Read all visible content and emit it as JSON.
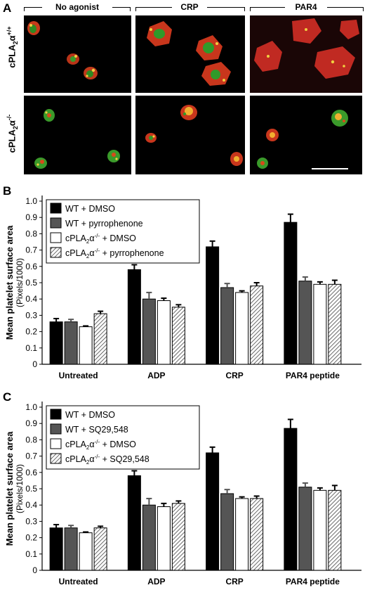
{
  "panel_a": {
    "letter": "A",
    "columns": [
      "No agonist",
      "CRP",
      "PAR4"
    ],
    "rows": [
      {
        "label": "cPLA",
        "sub": "2",
        "greek": "α",
        "sup": "+/+"
      },
      {
        "label": "cPLA",
        "sub": "2",
        "greek": "α",
        "sup": "-/-"
      }
    ]
  },
  "chart_data": [
    {
      "type": "bar",
      "panel": "B",
      "categories": [
        "Untreated",
        "ADP",
        "CRP",
        "PAR4 peptide"
      ],
      "ylabel": "Mean platelet surface area",
      "ylabel2": "(Pixels/1000)",
      "ylim": [
        0,
        1.0
      ],
      "yticks": [
        "0",
        "0.1",
        "0.2",
        "0.3",
        "0.4",
        "0.5",
        "0.6",
        "0.7",
        "0.8",
        "0.9",
        "1.0"
      ],
      "legend": "top-left",
      "series": [
        {
          "name": "WT + DMSO",
          "values": [
            0.26,
            0.58,
            0.72,
            0.87
          ],
          "errors": [
            0.02,
            0.03,
            0.035,
            0.05
          ],
          "color": "#000000",
          "fill": "solid"
        },
        {
          "name": "WT + pyrrophenone",
          "values": [
            0.26,
            0.4,
            0.47,
            0.51
          ],
          "errors": [
            0.015,
            0.04,
            0.025,
            0.025
          ],
          "color": "#555555",
          "fill": "solid"
        },
        {
          "name": "cPLA2α-/- + DMSO",
          "values": [
            0.23,
            0.39,
            0.44,
            0.49
          ],
          "errors": [
            0.005,
            0.015,
            0.01,
            0.015
          ],
          "color": "#ffffff",
          "fill": "solid"
        },
        {
          "name": "cPLA2α-/- + pyrrophenone",
          "values": [
            0.31,
            0.35,
            0.48,
            0.49
          ],
          "errors": [
            0.015,
            0.015,
            0.02,
            0.025
          ],
          "color": "#888888",
          "fill": "hatch"
        }
      ]
    },
    {
      "type": "bar",
      "panel": "C",
      "categories": [
        "Untreated",
        "ADP",
        "CRP",
        "PAR4 peptide"
      ],
      "ylabel": "Mean platelet surface area",
      "ylabel2": "(Pixels/1000)",
      "ylim": [
        0,
        1.0
      ],
      "yticks": [
        "0",
        "0.1",
        "0.2",
        "0.3",
        "0.4",
        "0.5",
        "0.6",
        "0.7",
        "0.8",
        "0.9",
        "1.0"
      ],
      "legend": "top-left",
      "series": [
        {
          "name": "WT + DMSO",
          "values": [
            0.26,
            0.58,
            0.72,
            0.87
          ],
          "errors": [
            0.02,
            0.03,
            0.035,
            0.055
          ],
          "color": "#000000",
          "fill": "solid"
        },
        {
          "name": "WT + SQ29,548",
          "values": [
            0.26,
            0.4,
            0.47,
            0.51
          ],
          "errors": [
            0.015,
            0.04,
            0.025,
            0.025
          ],
          "color": "#555555",
          "fill": "solid"
        },
        {
          "name": "cPLA2α-/- + DMSO",
          "values": [
            0.23,
            0.39,
            0.44,
            0.49
          ],
          "errors": [
            0.005,
            0.02,
            0.01,
            0.015
          ],
          "color": "#ffffff",
          "fill": "solid"
        },
        {
          "name": "cPLA2α-/- + SQ29,548",
          "values": [
            0.26,
            0.41,
            0.44,
            0.49
          ],
          "errors": [
            0.01,
            0.015,
            0.015,
            0.03
          ],
          "color": "#888888",
          "fill": "hatch"
        }
      ]
    }
  ],
  "panel_b_letter": "B",
  "panel_c_letter": "C"
}
